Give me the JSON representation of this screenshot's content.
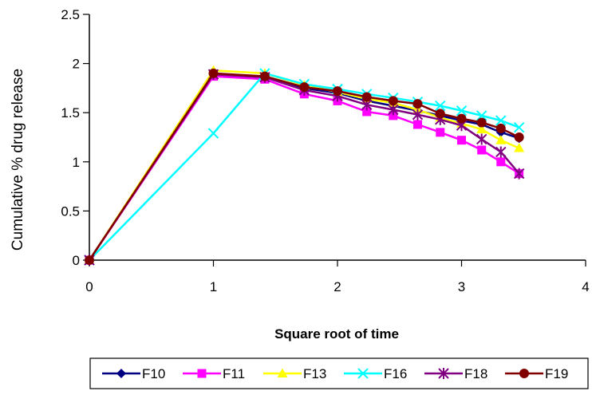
{
  "chart_data": {
    "type": "line",
    "title": "",
    "xlabel": "Square root of time",
    "ylabel": "Cumulative % drug release",
    "xlim": [
      0,
      4
    ],
    "ylim": [
      0,
      2.5
    ],
    "xticks": [
      0,
      1,
      2,
      3,
      4
    ],
    "yticks": [
      0,
      0.5,
      1,
      1.5,
      2,
      2.5
    ],
    "ytick_labels": [
      "0",
      "0.5",
      "1",
      "1.5",
      "2",
      "2.5"
    ],
    "grid": false,
    "legend_position": "bottom",
    "series": [
      {
        "name": "F10",
        "color": "#000080",
        "marker": "diamond",
        "x": [
          0,
          1,
          1.414,
          1.732,
          2,
          2.236,
          2.449,
          2.646,
          2.828,
          3,
          3.162,
          3.317,
          3.464
        ],
        "y": [
          0,
          1.89,
          1.86,
          1.75,
          1.7,
          1.62,
          1.57,
          1.52,
          1.47,
          1.42,
          1.38,
          1.3,
          1.24
        ]
      },
      {
        "name": "F11",
        "color": "#FF00FF",
        "marker": "square",
        "x": [
          0,
          1,
          1.414,
          1.732,
          2,
          2.236,
          2.449,
          2.646,
          2.828,
          3,
          3.162,
          3.317,
          3.464
        ],
        "y": [
          0,
          1.87,
          1.84,
          1.69,
          1.62,
          1.51,
          1.47,
          1.38,
          1.3,
          1.22,
          1.12,
          1.0,
          0.88
        ]
      },
      {
        "name": "F13",
        "color": "#FFFF00",
        "marker": "triangle",
        "x": [
          0,
          1,
          1.414,
          1.732,
          2,
          2.236,
          2.449,
          2.646,
          2.828,
          3,
          3.162,
          3.317,
          3.464
        ],
        "y": [
          0,
          1.93,
          1.9,
          1.78,
          1.71,
          1.64,
          1.6,
          1.53,
          1.45,
          1.39,
          1.33,
          1.22,
          1.14
        ]
      },
      {
        "name": "F16",
        "color": "#00FFFF",
        "marker": "x",
        "x": [
          0,
          1,
          1.414,
          1.732,
          2,
          2.236,
          2.449,
          2.646,
          2.828,
          3,
          3.162,
          3.317,
          3.464
        ],
        "y": [
          0,
          1.29,
          1.9,
          1.79,
          1.74,
          1.69,
          1.65,
          1.61,
          1.57,
          1.52,
          1.47,
          1.42,
          1.35
        ]
      },
      {
        "name": "F18",
        "color": "#800080",
        "marker": "star",
        "x": [
          0,
          1,
          1.414,
          1.732,
          2,
          2.236,
          2.449,
          2.646,
          2.828,
          3,
          3.162,
          3.317,
          3.464
        ],
        "y": [
          0,
          1.89,
          1.86,
          1.73,
          1.67,
          1.58,
          1.53,
          1.48,
          1.43,
          1.37,
          1.23,
          1.1,
          0.88
        ]
      },
      {
        "name": "F19",
        "color": "#800000",
        "marker": "circle",
        "x": [
          0,
          1,
          1.414,
          1.732,
          2,
          2.236,
          2.449,
          2.646,
          2.828,
          3,
          3.162,
          3.317,
          3.464
        ],
        "y": [
          0,
          1.9,
          1.87,
          1.76,
          1.72,
          1.66,
          1.62,
          1.59,
          1.49,
          1.44,
          1.4,
          1.34,
          1.25
        ]
      }
    ]
  }
}
